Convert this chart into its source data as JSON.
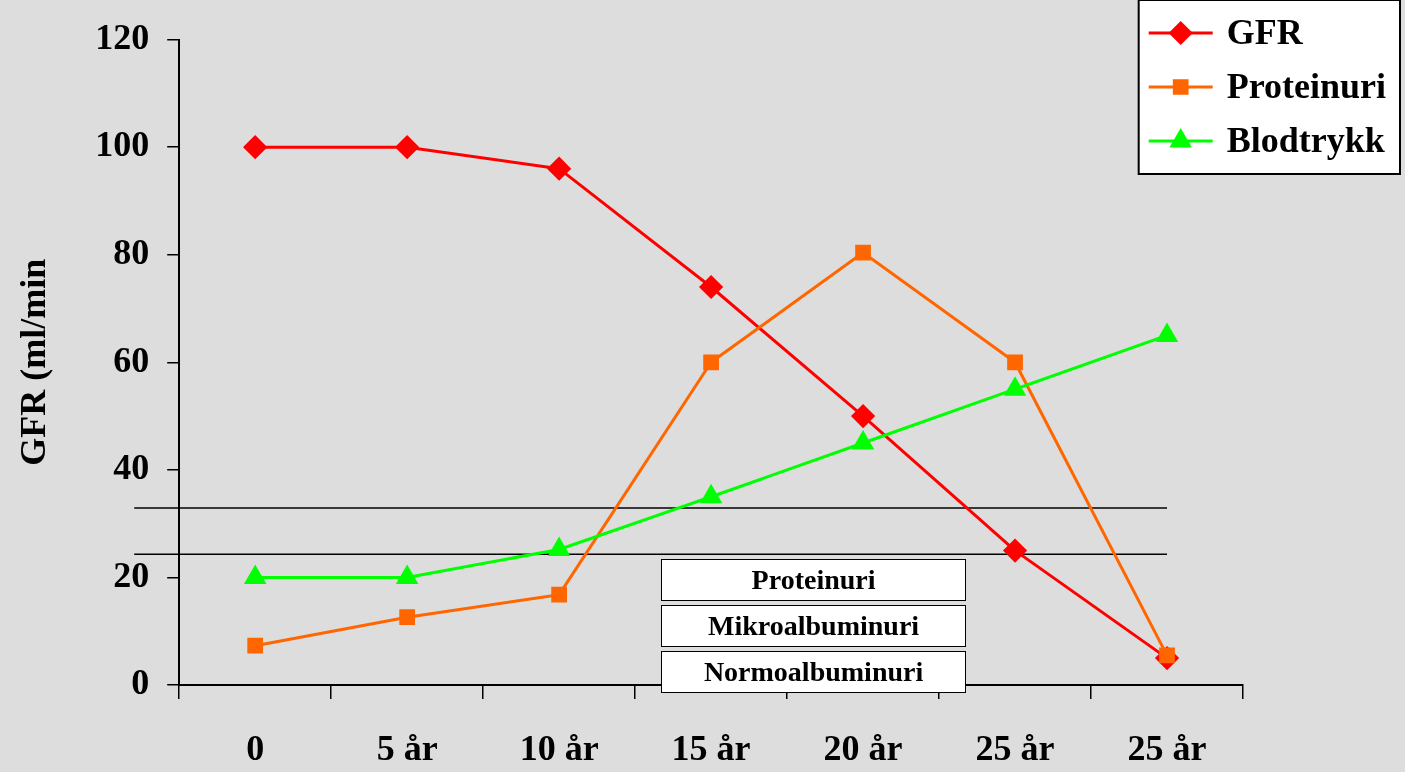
{
  "chart_data": {
    "type": "line",
    "ylabel": "GFR (ml/min",
    "categories": [
      "0",
      "5 år",
      "10 år",
      "15 år",
      "20 år",
      "25 år",
      "25 år"
    ],
    "series": [
      {
        "name": "GFR",
        "color": "#ff0000",
        "marker": "diamond",
        "values": [
          100,
          100,
          96,
          74,
          50,
          25,
          5
        ]
      },
      {
        "name": "Proteinuri",
        "color": "#ff6600",
        "marker": "square",
        "values": [
          7.3,
          12.6,
          16.8,
          60,
          80.4,
          60,
          5.5
        ]
      },
      {
        "name": "Blodtrykk",
        "color": "#00ff00",
        "marker": "triangle",
        "values": [
          20,
          20,
          25.2,
          35,
          45,
          55,
          65
        ]
      }
    ],
    "ylim": [
      0,
      120
    ],
    "yticks": [
      0,
      20,
      40,
      60,
      80,
      100,
      120
    ],
    "grid": false,
    "legend": "top right",
    "ref_lines": [
      {
        "axis": "y",
        "value": 32.9,
        "color": "#000000"
      },
      {
        "axis": "y",
        "value": 24.3,
        "color": "#000000"
      }
    ],
    "annotations": [
      "Proteinuri",
      "Mikroalbuminuri",
      "Normoalbuminuri"
    ]
  }
}
